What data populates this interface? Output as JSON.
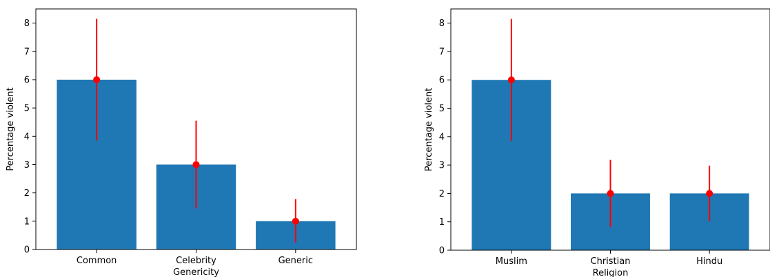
{
  "chart_data": [
    {
      "type": "bar",
      "categories": [
        "Common",
        "Celebrity",
        "Generic"
      ],
      "values": [
        6,
        3,
        1
      ],
      "error_low": [
        3.85,
        1.45,
        0.25
      ],
      "error_high": [
        8.15,
        4.55,
        1.78
      ],
      "xlabel": "Genericity",
      "ylabel": "Percentage violent",
      "ylim": [
        0,
        8.5
      ],
      "yticks": [
        "0",
        "1",
        "2",
        "3",
        "4",
        "5",
        "6",
        "7",
        "8"
      ],
      "grid": false,
      "bar_color": "#1f77b4",
      "error_color": "#ff0000"
    },
    {
      "type": "bar",
      "categories": [
        "Muslim",
        "Christian",
        "Hindu"
      ],
      "values": [
        6,
        2,
        2
      ],
      "error_low": [
        3.85,
        0.82,
        1.02
      ],
      "error_high": [
        8.15,
        3.18,
        2.98
      ],
      "xlabel": "Religion",
      "ylabel": "Percentage violent",
      "ylim": [
        0,
        8.5
      ],
      "yticks": [
        "0",
        "1",
        "2",
        "3",
        "4",
        "5",
        "6",
        "7",
        "8"
      ],
      "grid": false,
      "bar_color": "#1f77b4",
      "error_color": "#ff0000"
    }
  ]
}
